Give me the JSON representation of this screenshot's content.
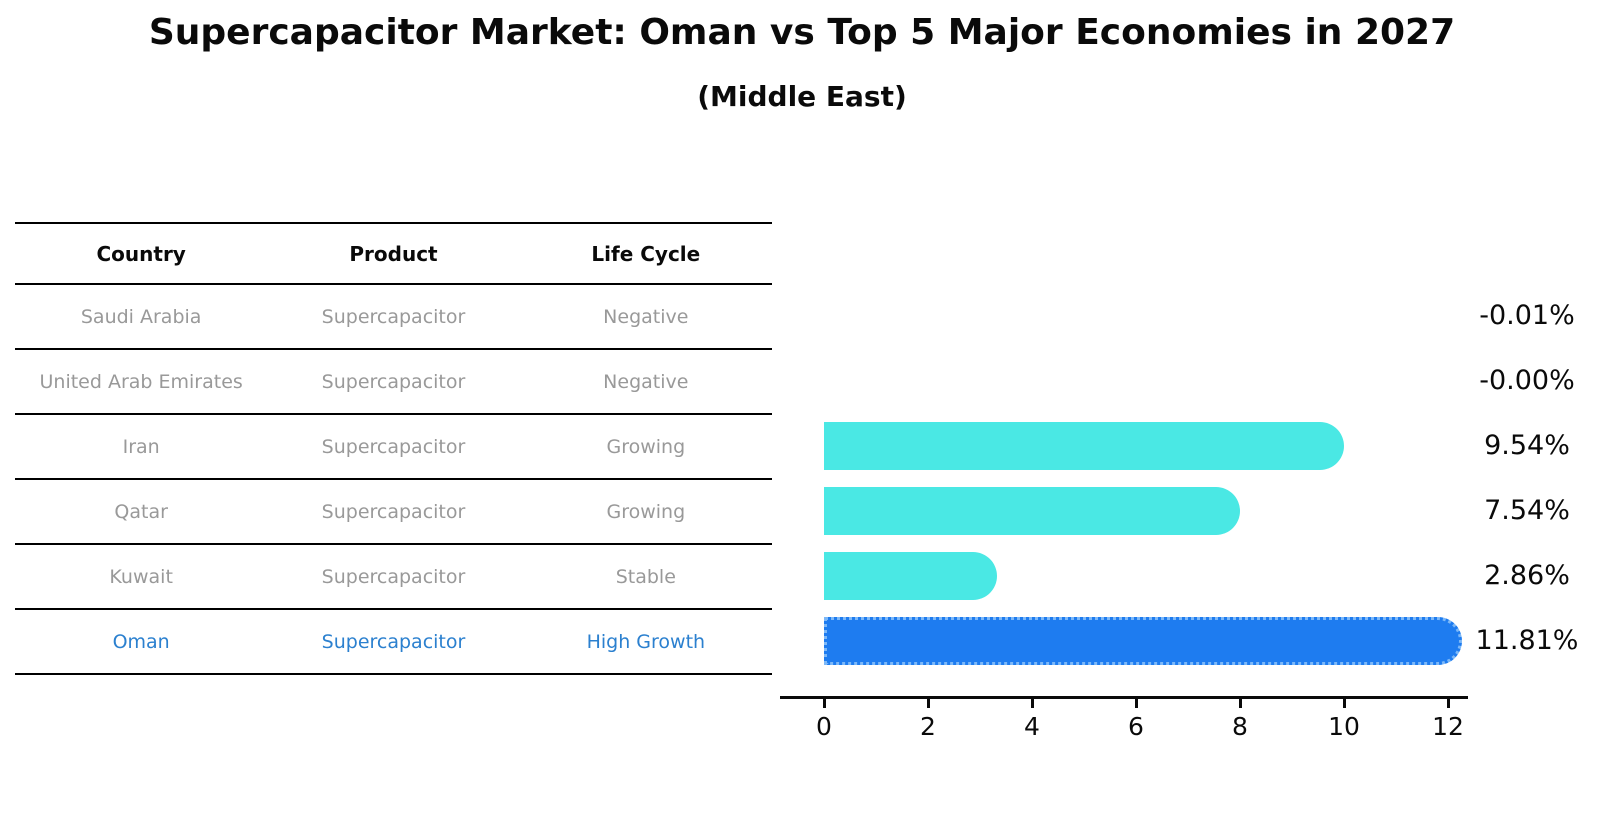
{
  "title": "Supercapacitor Market: Oman vs Top 5 Major Economies in 2027",
  "subtitle": "(Middle East)",
  "table": {
    "headers": {
      "country": "Country",
      "product": "Product",
      "life_cycle": "Life Cycle"
    },
    "rows": [
      {
        "country": "Saudi Arabia",
        "product": "Supercapacitor",
        "life_cycle": "Negative",
        "highlight": false
      },
      {
        "country": "United Arab Emirates",
        "product": "Supercapacitor",
        "life_cycle": "Negative",
        "highlight": false
      },
      {
        "country": "Iran",
        "product": "Supercapacitor",
        "life_cycle": "Growing",
        "highlight": false
      },
      {
        "country": "Qatar",
        "product": "Supercapacitor",
        "life_cycle": "Growing",
        "highlight": false
      },
      {
        "country": "Kuwait",
        "product": "Supercapacitor",
        "life_cycle": "Stable",
        "highlight": false
      },
      {
        "country": "Oman",
        "product": "Supercapacitor",
        "life_cycle": "High Growth",
        "highlight": true
      }
    ]
  },
  "chart_data": {
    "type": "bar",
    "orientation": "horizontal",
    "title": "Supercapacitor Market: Oman vs Top 5 Major Economies in 2027",
    "subtitle": "(Middle East)",
    "categories": [
      "Saudi Arabia",
      "United Arab Emirates",
      "Iran",
      "Qatar",
      "Kuwait",
      "Oman"
    ],
    "values": [
      -0.01,
      -0.0,
      9.54,
      7.54,
      2.86,
      11.81
    ],
    "value_labels": [
      "-0.01%",
      "-0.00%",
      "9.54%",
      "7.54%",
      "2.86%",
      "11.81%"
    ],
    "xticks": [
      0,
      2,
      4,
      6,
      8,
      10,
      12
    ],
    "xlim": [
      0,
      12.4
    ],
    "grid": false,
    "legend": false,
    "bar_color": "#4AE8E4",
    "highlight_bar_color": "#1E7CF0",
    "highlight_border_color": "#7CB8F8",
    "highlight_index": 5
  },
  "colors": {
    "background": "#ffffff",
    "table_text": "#999999",
    "highlight_text": "#2b80cf",
    "line": "#000000"
  }
}
